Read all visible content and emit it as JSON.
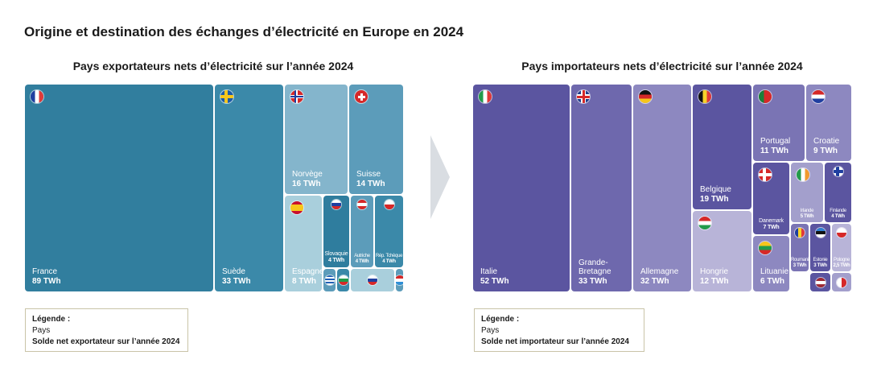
{
  "title": "Origine et destination des échanges d’électricité en Europe en 2024",
  "chart_data": [
    {
      "type": "treemap",
      "title": "Pays exportateurs nets d’électricité sur l’année 2024",
      "unit": "TWh",
      "color": "#2f7d9e",
      "items": [
        {
          "name": "France",
          "value": 89,
          "label": "89 TWh",
          "flag": "fr",
          "color": "#317e9e"
        },
        {
          "name": "Suède",
          "value": 33,
          "label": "33 TWh",
          "flag": "se",
          "color": "#3b89a9"
        },
        {
          "name": "Norvège",
          "value": 16,
          "label": "16 TWh",
          "flag": "no",
          "color": "#84b5cc"
        },
        {
          "name": "Suisse",
          "value": 14,
          "label": "14 TWh",
          "flag": "ch",
          "color": "#5c9cba"
        },
        {
          "name": "Espagne",
          "value": 8,
          "label": "8 TWh",
          "flag": "es",
          "color": "#a9cfdc"
        },
        {
          "name": "Slovaquie",
          "value": 4,
          "label": "4 TWh",
          "flag": "sk",
          "color": "#2f7d9e"
        },
        {
          "name": "Autriche",
          "value": 4,
          "label": "4 TWh",
          "flag": "at",
          "color": "#5c9cba"
        },
        {
          "name": "Rép. Tchèque",
          "value": 4,
          "label": "4 TWh",
          "flag": "cz",
          "color": "#3b89a9"
        },
        {
          "name": "",
          "value": 1,
          "label": "",
          "flag": "gr",
          "color": "#5c9cba"
        },
        {
          "name": "",
          "value": 1,
          "label": "",
          "flag": "bg",
          "color": "#3b89a9"
        },
        {
          "name": "",
          "value": 2,
          "label": "",
          "flag": "si",
          "color": "#a9cfdc"
        },
        {
          "name": "",
          "value": 1,
          "label": "",
          "flag": "lu",
          "color": "#5c9cba"
        }
      ],
      "legend": {
        "heading": "Légende :",
        "line1": "Pays",
        "line2": "Solde net exportateur sur l’année 2024"
      }
    },
    {
      "type": "treemap",
      "title": "Pays importateurs nets d’électricité sur l’année 2024",
      "unit": "TWh",
      "color": "#5b55a0",
      "items": [
        {
          "name": "Italie",
          "value": 52,
          "label": "52 TWh",
          "flag": "it",
          "color": "#5b55a0"
        },
        {
          "name": "Grande-Bretagne",
          "value": 33,
          "label": "33 TWh",
          "flag": "gb",
          "color": "#6e68ad"
        },
        {
          "name": "Allemagne",
          "value": 32,
          "label": "32 TWh",
          "flag": "de",
          "color": "#8d88c0"
        },
        {
          "name": "Belgique",
          "value": 19,
          "label": "19 TWh",
          "flag": "be",
          "color": "#5b55a0"
        },
        {
          "name": "Hongrie",
          "value": 12,
          "label": "12 TWh",
          "flag": "hu",
          "color": "#b8b4d8"
        },
        {
          "name": "Portugal",
          "value": 11,
          "label": "11 TWh",
          "flag": "pt",
          "color": "#7a74b4"
        },
        {
          "name": "Croatie",
          "value": 9,
          "label": "9 TWh",
          "flag": "hr",
          "color": "#8d88c0"
        },
        {
          "name": "Danemark",
          "value": 7,
          "label": "7 TWh",
          "flag": "dk",
          "color": "#5b55a0"
        },
        {
          "name": "Lituanie",
          "value": 6,
          "label": "6 TWh",
          "flag": "lt",
          "color": "#8d88c0"
        },
        {
          "name": "Irlande",
          "value": 5,
          "label": "5 TWh",
          "flag": "ie",
          "color": "#a39fcc"
        },
        {
          "name": "Finlande",
          "value": 4,
          "label": "4 TWh",
          "flag": "fi",
          "color": "#5b55a0"
        },
        {
          "name": "Roumanie",
          "value": 3,
          "label": "3 TWh",
          "flag": "ro",
          "color": "#7a74b4"
        },
        {
          "name": "Estonie",
          "value": 3,
          "label": "3 TWh",
          "flag": "ee",
          "color": "#5b55a0"
        },
        {
          "name": "Pologne",
          "value": 2.5,
          "label": "2,5 TWh",
          "flag": "pl",
          "color": "#b8b4d8"
        },
        {
          "name": "",
          "value": 1,
          "label": "",
          "flag": "lv",
          "color": "#5b55a0"
        },
        {
          "name": "",
          "value": 1,
          "label": "",
          "flag": "mt",
          "color": "#a39fcc"
        }
      ],
      "legend": {
        "heading": "Légende :",
        "line1": "Pays",
        "line2": "Solde net importateur sur l’année 2024"
      }
    }
  ]
}
